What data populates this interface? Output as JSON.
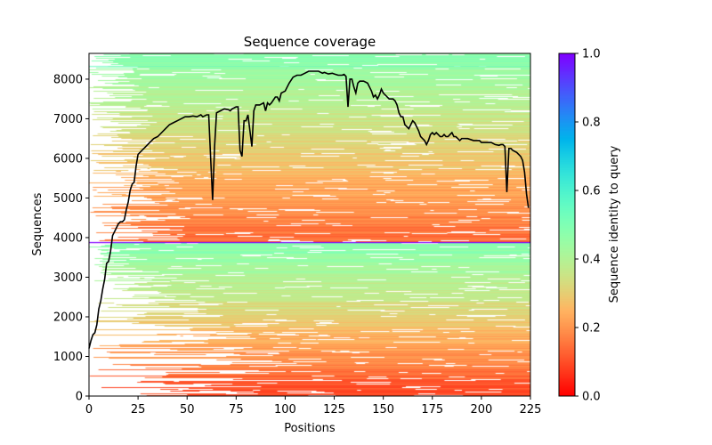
{
  "chart_data": {
    "type": "heatmap",
    "title": "Sequence coverage",
    "xlabel": "Positions",
    "ylabel": "Sequences",
    "xlim": [
      0,
      225
    ],
    "ylim": [
      0,
      8650
    ],
    "xticks": [
      0,
      25,
      50,
      75,
      100,
      125,
      150,
      175,
      200,
      225
    ],
    "yticks": [
      0,
      1000,
      2000,
      3000,
      4000,
      5000,
      6000,
      7000,
      8000
    ],
    "colorbar": {
      "label": "Sequence identity to query",
      "range": [
        0,
        1
      ],
      "ticks": [
        "0.0",
        "0.2",
        "0.4",
        "0.6",
        "0.8",
        "1.0"
      ],
      "colormap": "rainbow_r"
    },
    "query_row": 3888,
    "coverage_line": {
      "color": "#000000",
      "x": [
        0,
        1,
        2,
        3,
        4,
        5,
        6,
        7,
        8,
        9,
        10,
        11,
        12,
        13,
        14,
        15,
        16,
        17,
        18,
        19,
        20,
        21,
        22,
        23,
        24,
        25,
        27,
        29,
        31,
        33,
        35,
        37,
        39,
        41,
        43,
        45,
        47,
        49,
        51,
        53,
        55,
        57,
        58,
        60,
        61,
        62,
        63,
        64,
        65,
        67,
        69,
        71,
        72,
        73,
        75,
        76,
        77,
        78,
        79,
        80,
        81,
        82,
        83,
        84,
        85,
        87,
        89,
        90,
        91,
        92,
        93,
        95,
        96,
        97,
        98,
        100,
        102,
        104,
        106,
        108,
        110,
        112,
        115,
        117,
        119,
        120,
        122,
        124,
        125,
        127,
        129,
        130,
        131,
        132,
        133,
        134,
        135,
        136,
        137,
        138,
        140,
        142,
        143,
        144,
        145,
        146,
        147,
        148,
        149,
        150,
        152,
        153,
        155,
        156,
        157,
        158,
        159,
        160,
        161,
        162,
        163,
        164,
        165,
        166,
        167,
        168,
        169,
        170,
        171,
        172,
        173,
        174,
        175,
        176,
        177,
        178,
        179,
        180,
        181,
        182,
        183,
        184,
        185,
        186,
        187,
        188,
        189,
        190,
        193,
        196,
        199,
        200,
        205,
        207,
        209,
        210,
        211,
        212,
        213,
        214,
        215,
        216,
        218,
        220,
        221,
        222,
        223,
        224
      ],
      "y": [
        1200,
        1400,
        1550,
        1600,
        1800,
        2200,
        2400,
        2700,
        2950,
        3350,
        3400,
        3650,
        4050,
        4150,
        4250,
        4350,
        4400,
        4400,
        4450,
        4700,
        4900,
        5200,
        5350,
        5400,
        5800,
        6100,
        6200,
        6300,
        6400,
        6500,
        6550,
        6650,
        6750,
        6850,
        6900,
        6950,
        7000,
        7050,
        7050,
        7070,
        7050,
        7100,
        7050,
        7100,
        7100,
        6000,
        4950,
        6300,
        7150,
        7200,
        7250,
        7230,
        7200,
        7250,
        7300,
        7300,
        6200,
        6050,
        6950,
        6950,
        7100,
        6700,
        6300,
        7200,
        7350,
        7350,
        7400,
        7200,
        7400,
        7350,
        7400,
        7550,
        7550,
        7450,
        7650,
        7700,
        7900,
        8050,
        8100,
        8100,
        8150,
        8200,
        8200,
        8200,
        8150,
        8170,
        8130,
        8150,
        8130,
        8100,
        8100,
        8120,
        8070,
        7300,
        8000,
        8000,
        7800,
        7650,
        7900,
        7950,
        7950,
        7900,
        7800,
        7700,
        7550,
        7600,
        7500,
        7600,
        7750,
        7650,
        7550,
        7500,
        7500,
        7450,
        7350,
        7150,
        7050,
        7050,
        6850,
        6800,
        6750,
        6850,
        6950,
        6900,
        6800,
        6700,
        6550,
        6500,
        6450,
        6350,
        6450,
        6600,
        6650,
        6600,
        6650,
        6600,
        6550,
        6550,
        6600,
        6550,
        6550,
        6600,
        6650,
        6550,
        6550,
        6500,
        6450,
        6500,
        6500,
        6450,
        6450,
        6400,
        6400,
        6350,
        6330,
        6350,
        6350,
        6300,
        5150,
        6250,
        6250,
        6200,
        6150,
        6050,
        5950,
        5650,
        5100,
        4750
      ]
    }
  }
}
